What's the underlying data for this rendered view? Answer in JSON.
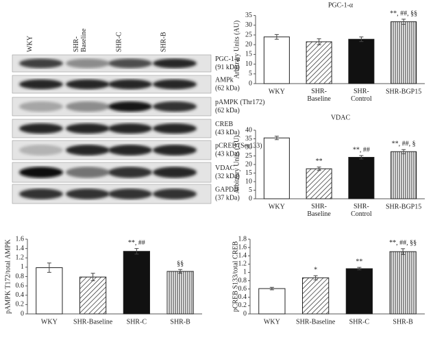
{
  "blot": {
    "lanes": [
      "WKY",
      "SHR-\nBaseline",
      "SHR-C",
      "SHR-B"
    ],
    "rows": [
      {
        "name": "PGC-1-α",
        "size": "(91 kDa)"
      },
      {
        "name": "AMPk",
        "size": "(62 kDa)"
      },
      {
        "name": "pAMPK (Thr172)",
        "size": "(62 kDa)"
      },
      {
        "name": "CREB",
        "size": "(43 kDa)"
      },
      {
        "name": "pCREB (Ser133)",
        "size": "(43 kDa)"
      },
      {
        "name": "VDAC",
        "size": "(32 kDa)"
      },
      {
        "name": "GAPDH",
        "size": "(37 kDa)"
      }
    ]
  },
  "chart_data": [
    {
      "type": "bar",
      "title": "PGC-1-α",
      "ylabel": "Arbitrary Units (AU)",
      "categories": [
        "WKY",
        "SHR-\nBaseline",
        "SHR-\nControl",
        "SHR-BGP15"
      ],
      "values": [
        24,
        21.5,
        22.8,
        31.8
      ],
      "errors": [
        1.2,
        1.5,
        1.2,
        1.3
      ],
      "annotations": [
        null,
        null,
        null,
        "**, ##, §§"
      ],
      "ylim": [
        0,
        35
      ],
      "yticks": [
        0,
        5,
        10,
        15,
        20,
        25,
        30,
        35
      ]
    },
    {
      "type": "bar",
      "title": "VDAC",
      "ylabel": "Arbitrary Units (AU)",
      "categories": [
        "WKY",
        "SHR-\nBaseline",
        "SHR-\nControl",
        "SHR-BGP15"
      ],
      "values": [
        35.5,
        17.5,
        24.2,
        27.5
      ],
      "errors": [
        1,
        1,
        1,
        1.2
      ],
      "annotations": [
        null,
        "**",
        "**, ##",
        "**, ##, §"
      ],
      "ylim": [
        0,
        40
      ],
      "yticks": [
        0,
        5,
        10,
        15,
        20,
        25,
        30,
        35,
        40
      ]
    },
    {
      "type": "bar",
      "ylabel": "pAMPK T172/total AMPK",
      "categories": [
        "WKY",
        "SHR-Baseline",
        "SHR-C",
        "SHR-B"
      ],
      "values": [
        0.99,
        0.79,
        1.34,
        0.91
      ],
      "errors": [
        0.1,
        0.08,
        0.06,
        0.04
      ],
      "annotations": [
        null,
        null,
        "**, ##",
        "§§"
      ],
      "ylim": [
        0,
        1.6
      ],
      "yticks": [
        0,
        0.2,
        0.4,
        0.6,
        0.8,
        1,
        1.2,
        1.4,
        1.6
      ]
    },
    {
      "type": "bar",
      "ylabel": "pCREB S133/total CREB",
      "categories": [
        "WKY",
        "SHR-Baseline",
        "SHR-C",
        "SHR-B"
      ],
      "values": [
        0.61,
        0.87,
        1.09,
        1.5
      ],
      "errors": [
        0.03,
        0.05,
        0.03,
        0.07
      ],
      "annotations": [
        null,
        "*",
        "**",
        "**, ##, §§"
      ],
      "ylim": [
        0,
        1.8
      ],
      "yticks": [
        0,
        0.2,
        0.4,
        0.6,
        0.8,
        1,
        1.2,
        1.4,
        1.6,
        1.8
      ]
    }
  ]
}
